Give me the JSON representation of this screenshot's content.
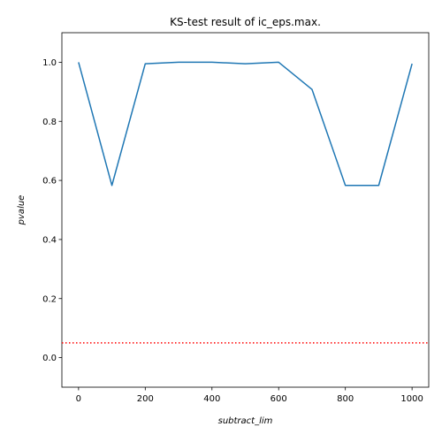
{
  "chart_data": {
    "type": "line",
    "title": "KS-test result of ic_eps.max.",
    "xlabel": "subtract_lim",
    "ylabel": "pvalue",
    "xlim": [
      -50,
      1050
    ],
    "ylim": [
      -0.1,
      1.1
    ],
    "xticks": [
      0,
      200,
      400,
      600,
      800,
      1000
    ],
    "xtick_labels": [
      "0",
      "200",
      "400",
      "600",
      "800",
      "1000"
    ],
    "yticks": [
      0.0,
      0.2,
      0.4,
      0.6,
      0.8,
      1.0
    ],
    "ytick_labels": [
      "0.0",
      "0.2",
      "0.4",
      "0.6",
      "0.8",
      "1.0"
    ],
    "grid": false,
    "series": [
      {
        "color": "#1f77b4",
        "x": [
          0,
          100,
          200,
          300,
          400,
          500,
          600,
          700,
          800,
          900,
          1000
        ],
        "y": [
          1.0,
          0.583,
          0.995,
          1.0,
          1.0,
          0.995,
          1.0,
          0.908,
          0.583,
          0.583,
          0.995
        ]
      }
    ],
    "reference_line": {
      "y": 0.05,
      "color": "#ff0000",
      "style": "dotted"
    }
  }
}
